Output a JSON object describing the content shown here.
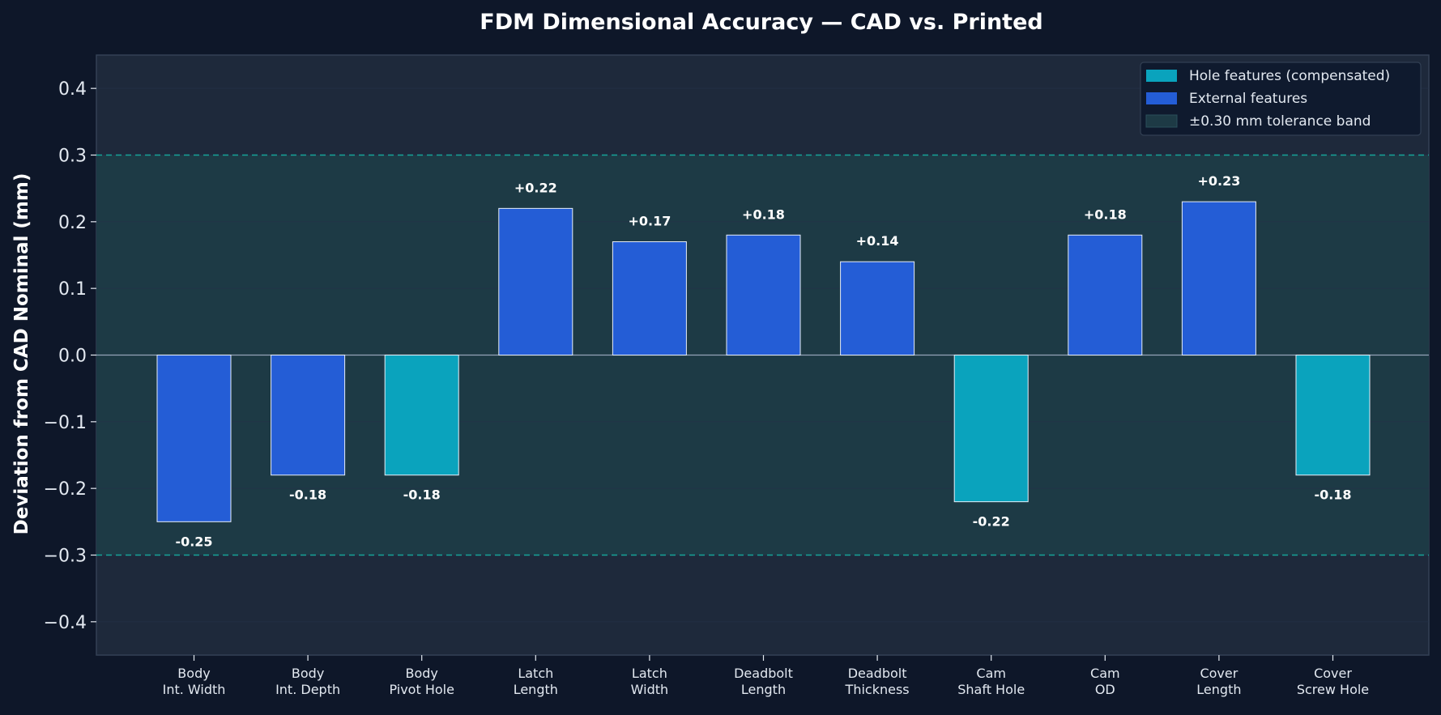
{
  "colors": {
    "page_bg": "#0e1729",
    "plot_bg": "#1e293b",
    "plot_border": "#334155",
    "band_fill": "#1d3a45",
    "tol_line": "#14b8a6",
    "hole": "#0aa3bd",
    "external": "#245dd6",
    "text": "#ffffff",
    "tick_text": "#e2e8f0",
    "zero_line": "#94a3b8",
    "grid": "#26334a"
  },
  "chart_data": {
    "type": "bar",
    "title": "FDM Dimensional Accuracy — CAD vs. Printed",
    "xlabel": "",
    "ylabel": "Deviation from CAD Nominal (mm)",
    "ylim": [
      -0.45,
      0.45
    ],
    "yticks": [
      -0.4,
      -0.3,
      -0.2,
      -0.1,
      0.0,
      0.1,
      0.2,
      0.3,
      0.4
    ],
    "ytick_labels": [
      "−0.4",
      "−0.3",
      "−0.2",
      "−0.1",
      "0.0",
      "0.1",
      "0.2",
      "0.3",
      "0.4"
    ],
    "grid": true,
    "legend_position": "top-right",
    "tolerance": 0.3,
    "categories": [
      [
        "Body",
        "Int. Width"
      ],
      [
        "Body",
        "Int. Depth"
      ],
      [
        "Body",
        "Pivot Hole"
      ],
      [
        "Latch",
        "Length"
      ],
      [
        "Latch",
        "Width"
      ],
      [
        "Deadbolt",
        "Length"
      ],
      [
        "Deadbolt",
        "Thickness"
      ],
      [
        "Cam",
        "Shaft Hole"
      ],
      [
        "Cam",
        "OD"
      ],
      [
        "Cover",
        "Length"
      ],
      [
        "Cover",
        "Screw Hole"
      ]
    ],
    "values": [
      -0.25,
      -0.18,
      -0.18,
      0.22,
      0.17,
      0.18,
      0.14,
      -0.22,
      0.18,
      0.23,
      -0.18
    ],
    "value_labels": [
      "-0.25",
      "-0.18",
      "-0.18",
      "+0.22",
      "+0.17",
      "+0.18",
      "+0.14",
      "-0.22",
      "+0.18",
      "+0.23",
      "-0.18"
    ],
    "kinds": [
      "external",
      "external",
      "hole",
      "external",
      "external",
      "external",
      "external",
      "hole",
      "external",
      "external",
      "hole"
    ],
    "legend": [
      {
        "key": "hole",
        "label": "Hole features (compensated)"
      },
      {
        "key": "external",
        "label": "External features"
      },
      {
        "key": "band",
        "label": "±0.30 mm tolerance band"
      }
    ]
  }
}
